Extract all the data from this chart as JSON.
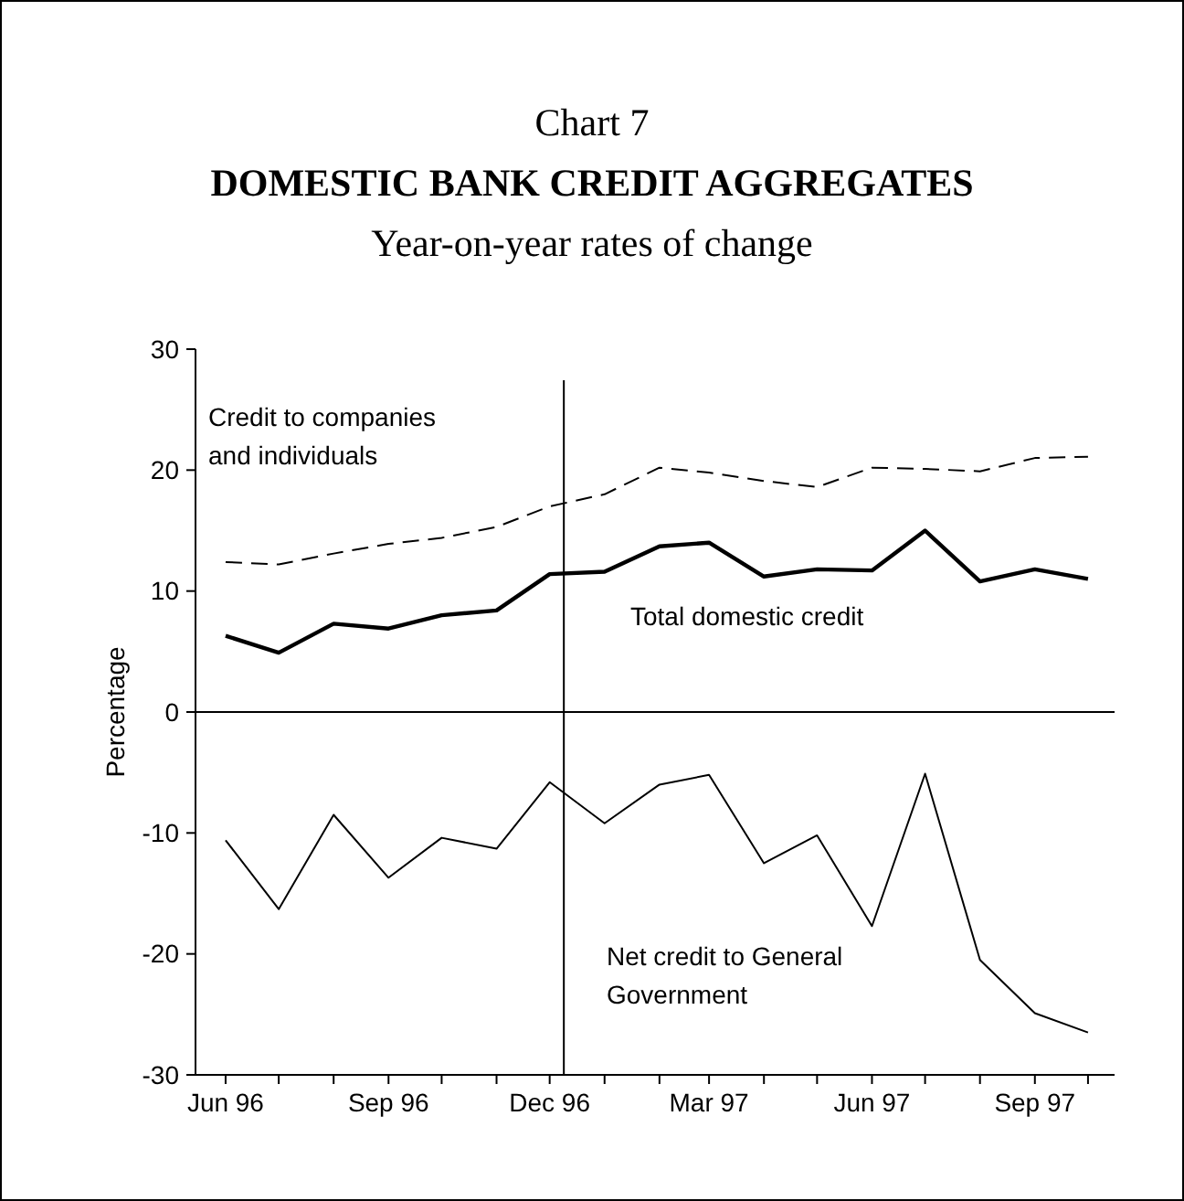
{
  "chart_data": {
    "type": "line",
    "title": "DOMESTIC BANK CREDIT AGGREGATES",
    "subtitle": "Year-on-year rates of change",
    "annotations": [
      "Chart 7"
    ],
    "ylabel": "Percentage",
    "x": [
      "1996-06",
      "1996-07",
      "1996-08",
      "1996-09",
      "1996-10",
      "1996-11",
      "1996-12",
      "1997-01",
      "1997-02",
      "1997-03",
      "1997-04",
      "1997-05",
      "1997-06",
      "1997-07",
      "1997-08",
      "1997-09",
      "1997-10"
    ],
    "xlim": [
      "1996-05-15",
      "1997-10-16"
    ],
    "xticks": [
      {
        "value": "1996-06",
        "label": "Jun 96"
      },
      {
        "value": "1996-07",
        "label": null
      },
      {
        "value": "1996-08",
        "label": null
      },
      {
        "value": "1996-09",
        "label": "Sep 96"
      },
      {
        "value": "1996-10",
        "label": null
      },
      {
        "value": "1996-11",
        "label": null
      },
      {
        "value": "1996-12",
        "label": "Dec 96"
      },
      {
        "value": "1997-01",
        "label": null
      },
      {
        "value": "1997-02",
        "label": null
      },
      {
        "value": "1997-03",
        "label": "Mar 97"
      },
      {
        "value": "1997-04",
        "label": null
      },
      {
        "value": "1997-05",
        "label": null
      },
      {
        "value": "1997-06",
        "label": "Jun 97"
      },
      {
        "value": "1997-07",
        "label": null
      },
      {
        "value": "1997-08",
        "label": null
      },
      {
        "value": "1997-09",
        "label": "Sep 97"
      },
      {
        "value": "1997-10",
        "label": null
      }
    ],
    "ylim": [
      -30,
      30
    ],
    "yticks": [
      -30,
      -20,
      -10,
      0,
      10,
      20,
      30
    ],
    "grid": false,
    "ref_lines": [
      {
        "axis": "y",
        "value": 0
      },
      {
        "axis": "x",
        "value": "1996-12-09"
      }
    ],
    "series": [
      {
        "name": "Credit to companies and individuals",
        "color": "#000000",
        "line_style": "dashed",
        "values": [
          12.4,
          12.2,
          13.1,
          13.9,
          14.4,
          15.3,
          17.0,
          18.0,
          20.2,
          19.8,
          19.1,
          18.6,
          20.2,
          20.1,
          19.9,
          21.0,
          21.1
        ]
      },
      {
        "name": "Total domestic credit",
        "color": "#000000",
        "line_style": "solid",
        "values": [
          6.3,
          4.9,
          7.3,
          6.9,
          8.0,
          8.4,
          11.4,
          11.6,
          13.7,
          14.0,
          11.2,
          11.8,
          11.7,
          15.0,
          10.8,
          11.8,
          11.0
        ]
      },
      {
        "name": "Net credit to General Government",
        "color": "#000000",
        "line_style": "solid",
        "values": [
          -10.6,
          -16.3,
          -8.5,
          -13.7,
          -10.4,
          -11.3,
          -5.8,
          -9.2,
          -6.0,
          -5.2,
          -12.5,
          -10.2,
          -17.7,
          -5.1,
          -20.5,
          -24.9,
          -26.5
        ]
      }
    ]
  }
}
